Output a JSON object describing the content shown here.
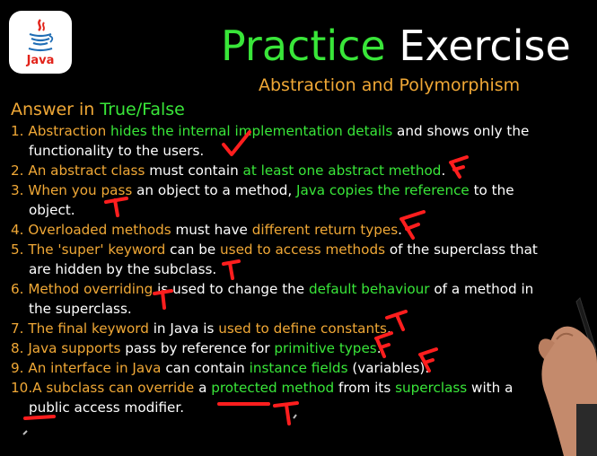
{
  "logo": {
    "label": "Java"
  },
  "title": {
    "part1": "Practice",
    "part2": "Exercise"
  },
  "subtitle": "Abstraction and Polymorphism",
  "heading": {
    "part1": "Answer in ",
    "part2": "True/False"
  },
  "colors": {
    "orange": "#f0a836",
    "green": "#39e639",
    "white": "#ffffff",
    "mark_red": "#ff1e1e",
    "background": "#000000"
  },
  "questions": [
    {
      "l1": [
        "1. Abstraction ",
        "hides the internal implementation details",
        " and shows only the"
      ],
      "l2": [
        "functionality to the users."
      ]
    },
    {
      "l1": [
        "2. An abstract class ",
        "must contain ",
        "at least one abstract method",
        "."
      ]
    },
    {
      "l1": [
        "3. When you pass ",
        "an object to a method, ",
        "Java copies the reference",
        " to the"
      ],
      "l2": [
        "object."
      ]
    },
    {
      "l1": [
        "4. Overloaded methods ",
        "must have ",
        "different return types",
        "."
      ]
    },
    {
      "l1": [
        "5. The 'super' keyword ",
        "can be ",
        "used to access methods",
        " of the superclass that"
      ],
      "l2": [
        "are hidden by the subclass."
      ]
    },
    {
      "l1": [
        "6. Method overriding ",
        "is used to change the ",
        "default behaviour",
        " of a method in"
      ],
      "l2": [
        "the superclass."
      ]
    },
    {
      "l1": [
        "7. The final keyword ",
        "in Java is ",
        "used to define constants",
        "."
      ]
    },
    {
      "l1": [
        "8. Java supports ",
        "pass by reference for ",
        "primitive types",
        "."
      ]
    },
    {
      "l1": [
        "9. An interface in Java ",
        "can contain ",
        "instance fields",
        " (variables)."
      ]
    },
    {
      "l1": [
        "10.A subclass can override ",
        "a ",
        "protected method",
        " from its ",
        "superclass",
        " with a"
      ],
      "l2": [
        "public access modifier."
      ]
    }
  ],
  "annotations": [
    "T",
    "F",
    "T",
    "F",
    "T",
    "T",
    "T",
    "F",
    "F",
    "T"
  ]
}
